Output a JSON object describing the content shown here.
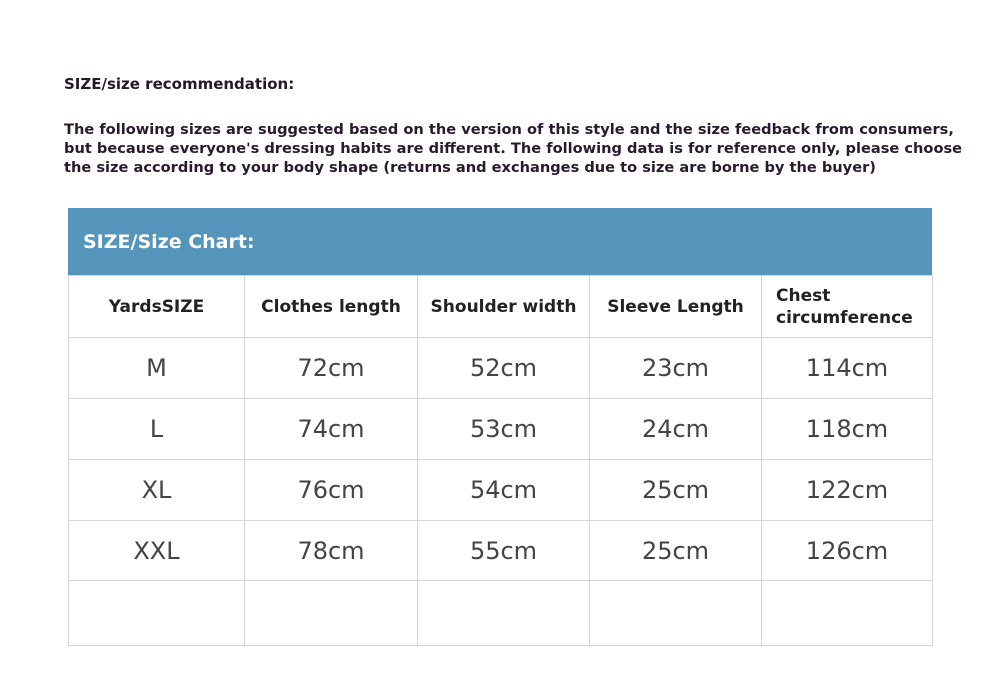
{
  "heading": "SIZE/size recommendation:",
  "intro": "The following sizes are suggested based on the version of this style and the size feedback from consumers, but because everyone's dressing habits are different. The following data is for reference only, please choose the size according to your body shape (returns and exchanges due to size are borne by the buyer)",
  "table": {
    "title": "SIZE/Size Chart:",
    "header_color": "#5594bb",
    "columns": [
      "YardsSIZE",
      "Clothes length",
      "Shoulder width",
      "Sleeve Length",
      "Chest circumference"
    ],
    "rows": [
      [
        "M",
        "72cm",
        "52cm",
        "23cm",
        "114cm"
      ],
      [
        "L",
        "74cm",
        "53cm",
        "24cm",
        "118cm"
      ],
      [
        "XL",
        "76cm",
        "54cm",
        "25cm",
        "122cm"
      ],
      [
        "XXL",
        "78cm",
        "55cm",
        "25cm",
        "126cm"
      ],
      [
        "",
        "",
        "",
        "",
        ""
      ]
    ]
  }
}
